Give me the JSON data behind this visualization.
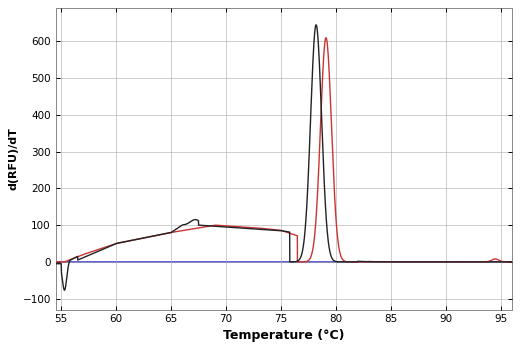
{
  "xlabel": "Temperature (°C)",
  "ylabel": "d(RFU)/dT",
  "xlim": [
    54.5,
    96
  ],
  "ylim": [
    -130,
    690
  ],
  "xticks": [
    55,
    60,
    65,
    70,
    75,
    80,
    85,
    90,
    95
  ],
  "yticks": [
    -100,
    0,
    100,
    200,
    300,
    400,
    500,
    600
  ],
  "grid_color": "#aaaaaa",
  "dark_color": "#222222",
  "red_color": "#cc3333",
  "hline_color": "#4444cc",
  "bg_color": "#ffffff",
  "linewidth": 1.0
}
